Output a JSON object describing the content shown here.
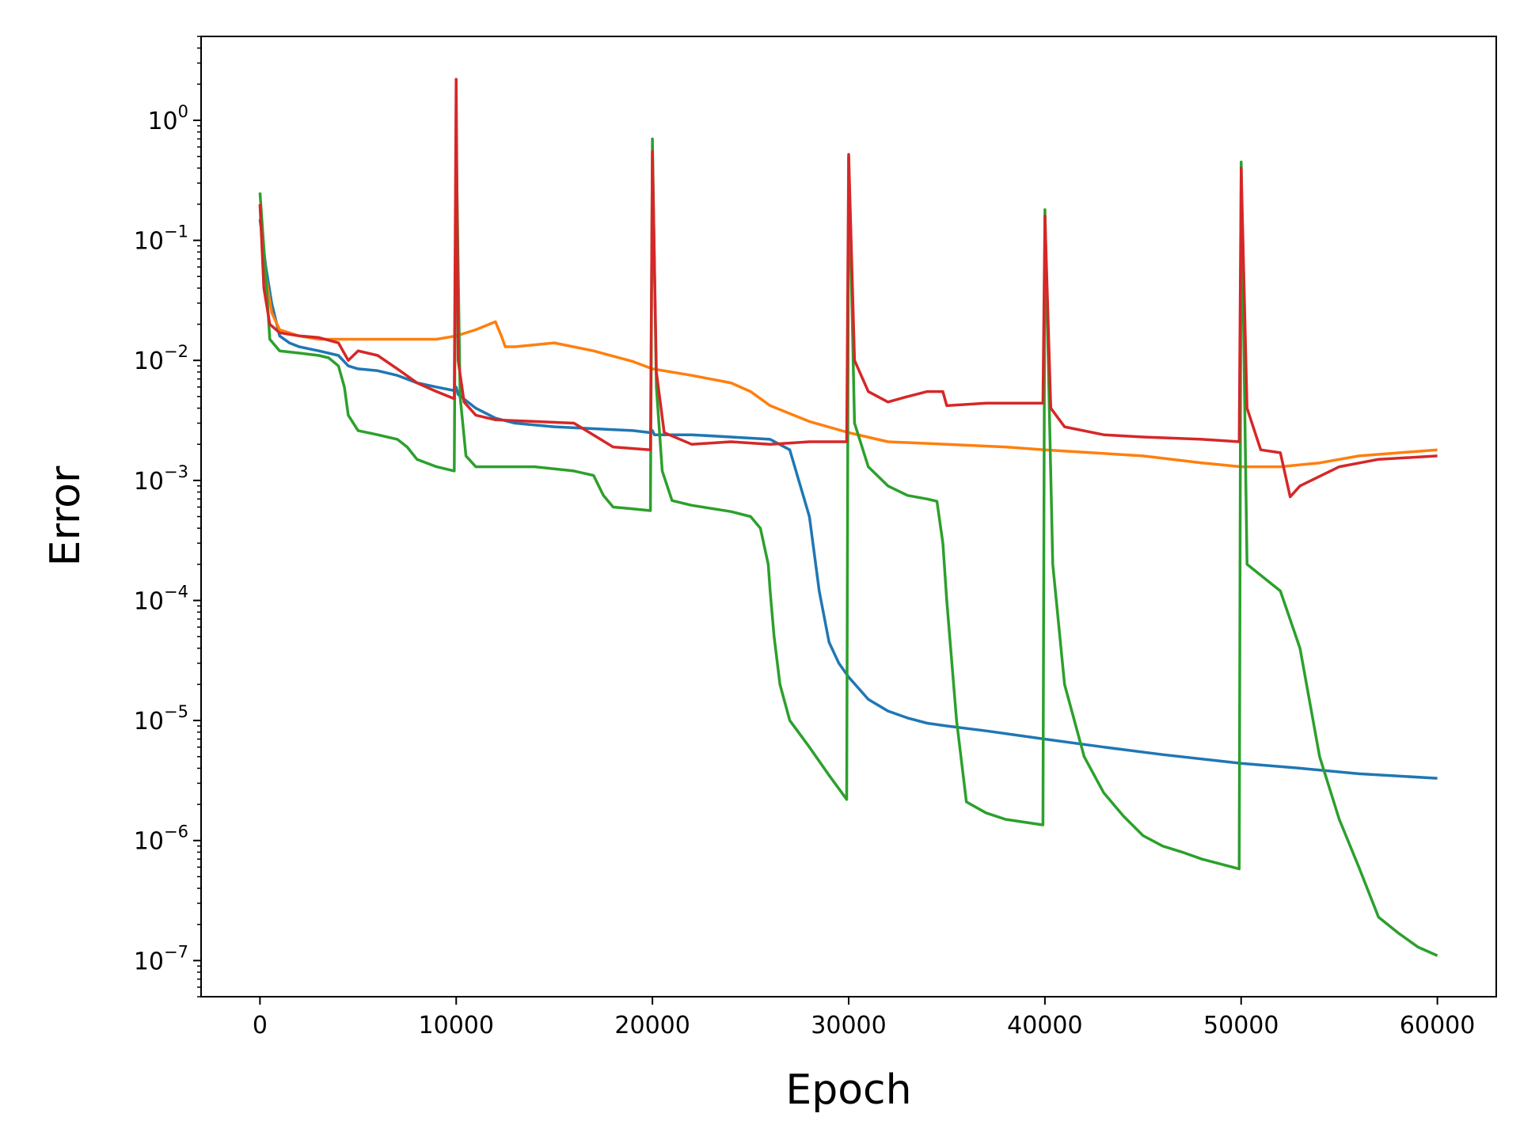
{
  "chart_data": {
    "type": "line",
    "title": "",
    "xlabel": "Epoch",
    "ylabel": "Error",
    "yscale": "log",
    "xlim": [
      -3000,
      63000
    ],
    "ylim": [
      5e-08,
      5
    ],
    "x_ticks": [
      0,
      10000,
      20000,
      30000,
      40000,
      50000,
      60000
    ],
    "x_tick_labels": [
      "0",
      "10000",
      "20000",
      "30000",
      "40000",
      "50000",
      "60000"
    ],
    "y_ticks": [
      1e-07,
      1e-06,
      1e-05,
      0.0001,
      0.001,
      0.01,
      0.1,
      1
    ],
    "y_tick_labels": [
      {
        "base": "10",
        "exp": "−7"
      },
      {
        "base": "10",
        "exp": "−6"
      },
      {
        "base": "10",
        "exp": "−5"
      },
      {
        "base": "10",
        "exp": "−4"
      },
      {
        "base": "10",
        "exp": "−3"
      },
      {
        "base": "10",
        "exp": "−2"
      },
      {
        "base": "10",
        "exp": "−1"
      },
      {
        "base": "10",
        "exp": "0"
      }
    ],
    "grid": false,
    "legend": "none",
    "series": [
      {
        "color": "#1f77b4",
        "x": [
          0,
          300,
          600,
          1000,
          1500,
          2000,
          3000,
          4000,
          4500,
          5000,
          6000,
          7000,
          8000,
          9000,
          9900,
          10000,
          10100,
          11000,
          12000,
          13000,
          15000,
          17000,
          19000,
          19900,
          20000,
          20100,
          22000,
          24000,
          26000,
          27000,
          28000,
          28500,
          29000,
          29500,
          30000,
          31000,
          32000,
          33000,
          34000,
          35000,
          37000,
          40000,
          43000,
          46000,
          50000,
          53000,
          56000,
          60000
        ],
        "y": [
          0.15,
          0.06,
          0.03,
          0.016,
          0.014,
          0.013,
          0.012,
          0.011,
          0.009,
          0.0085,
          0.0082,
          0.0075,
          0.0065,
          0.006,
          0.0056,
          0.006,
          0.0052,
          0.004,
          0.0033,
          0.003,
          0.0028,
          0.0027,
          0.0026,
          0.0025,
          0.0026,
          0.0024,
          0.0024,
          0.0023,
          0.0022,
          0.0018,
          0.0005,
          0.00012,
          4.5e-05,
          3e-05,
          2.3e-05,
          1.5e-05,
          1.2e-05,
          1.05e-05,
          9.5e-06,
          9e-06,
          8.2e-06,
          7e-06,
          6e-06,
          5.2e-06,
          4.4e-06,
          4e-06,
          3.6e-06,
          3.3e-06
        ]
      },
      {
        "color": "#ff7f0e",
        "x": [
          0,
          300,
          600,
          1000,
          2000,
          3000,
          4000,
          5000,
          7000,
          9000,
          10000,
          11000,
          12000,
          12300,
          12500,
          13000,
          15000,
          17000,
          19000,
          20000,
          22000,
          24000,
          25000,
          26000,
          28000,
          30000,
          32000,
          35000,
          38000,
          40000,
          45000,
          48000,
          50000,
          52000,
          54000,
          56000,
          60000
        ],
        "y": [
          0.2,
          0.05,
          0.025,
          0.018,
          0.016,
          0.015,
          0.015,
          0.015,
          0.015,
          0.015,
          0.016,
          0.018,
          0.021,
          0.016,
          0.013,
          0.013,
          0.014,
          0.012,
          0.0098,
          0.0085,
          0.0075,
          0.0065,
          0.0055,
          0.0042,
          0.0031,
          0.0025,
          0.0021,
          0.002,
          0.0019,
          0.0018,
          0.0016,
          0.0014,
          0.0013,
          0.0013,
          0.0014,
          0.0016,
          0.0018
        ]
      },
      {
        "color": "#2ca02c",
        "x": [
          0,
          300,
          500,
          1000,
          2000,
          3000,
          3500,
          4000,
          4300,
          4500,
          5000,
          6000,
          7000,
          7500,
          8000,
          9000,
          9900,
          10000,
          10200,
          10500,
          11000,
          12000,
          14000,
          16000,
          17000,
          17500,
          18000,
          19000,
          19900,
          20000,
          20200,
          20500,
          21000,
          22000,
          24000,
          25000,
          25500,
          25900,
          26000,
          26200,
          26500,
          27000,
          28000,
          29000,
          29900,
          30000,
          30300,
          31000,
          32000,
          33000,
          34000,
          34500,
          34800,
          35000,
          35500,
          36000,
          37000,
          38000,
          39900,
          40000,
          40400,
          41000,
          42000,
          43000,
          44000,
          45000,
          46000,
          47000,
          48000,
          49900,
          50000,
          50300,
          52000,
          53000,
          54000,
          55000,
          56000,
          57000,
          58000,
          59000,
          60000
        ],
        "y": [
          0.25,
          0.05,
          0.015,
          0.012,
          0.0115,
          0.011,
          0.0105,
          0.009,
          0.006,
          0.0035,
          0.0026,
          0.0024,
          0.0022,
          0.0019,
          0.0015,
          0.0013,
          0.0012,
          0.75,
          0.005,
          0.0016,
          0.0013,
          0.0013,
          0.0013,
          0.0012,
          0.0011,
          0.00075,
          0.0006,
          0.00058,
          0.00056,
          0.7,
          0.006,
          0.0012,
          0.00068,
          0.00062,
          0.00055,
          0.0005,
          0.0004,
          0.0002,
          0.00012,
          5e-05,
          2e-05,
          1e-05,
          6e-06,
          3.5e-06,
          2.2e-06,
          0.5,
          0.003,
          0.0013,
          0.0009,
          0.00075,
          0.0007,
          0.00067,
          0.0003,
          0.0001,
          1e-05,
          2.1e-06,
          1.7e-06,
          1.5e-06,
          1.35e-06,
          0.18,
          0.0002,
          2e-05,
          5e-06,
          2.5e-06,
          1.6e-06,
          1.1e-06,
          9e-07,
          8e-07,
          7e-07,
          5.8e-07,
          0.45,
          0.0002,
          0.00012,
          4e-05,
          5e-06,
          1.5e-06,
          6e-07,
          2.3e-07,
          1.7e-07,
          1.3e-07,
          1.1e-07
        ]
      },
      {
        "color": "#d62728",
        "x": [
          0,
          200,
          500,
          1000,
          2000,
          3000,
          4000,
          4500,
          5000,
          6000,
          7000,
          8000,
          9000,
          9900,
          10000,
          10100,
          10400,
          11000,
          12000,
          14000,
          16000,
          18000,
          19900,
          20000,
          20200,
          20600,
          22000,
          24000,
          26000,
          28000,
          29900,
          30000,
          30300,
          31000,
          32000,
          33000,
          34000,
          34800,
          35000,
          37000,
          39900,
          40000,
          40300,
          41000,
          43000,
          45000,
          48000,
          49900,
          50000,
          50300,
          51000,
          52000,
          52500,
          53000,
          55000,
          57000,
          60000
        ],
        "y": [
          0.2,
          0.04,
          0.02,
          0.017,
          0.016,
          0.0155,
          0.014,
          0.01,
          0.012,
          0.011,
          0.0085,
          0.0065,
          0.0055,
          0.0048,
          2.2,
          0.01,
          0.0045,
          0.0035,
          0.0032,
          0.0031,
          0.003,
          0.0019,
          0.0018,
          0.55,
          0.008,
          0.0025,
          0.002,
          0.0021,
          0.002,
          0.0021,
          0.0021,
          0.52,
          0.01,
          0.0055,
          0.0045,
          0.005,
          0.0055,
          0.0055,
          0.0042,
          0.0044,
          0.0044,
          0.16,
          0.004,
          0.0028,
          0.0024,
          0.0023,
          0.0022,
          0.0021,
          0.4,
          0.004,
          0.0018,
          0.0017,
          0.00073,
          0.0009,
          0.0013,
          0.0015,
          0.0016
        ]
      }
    ]
  }
}
